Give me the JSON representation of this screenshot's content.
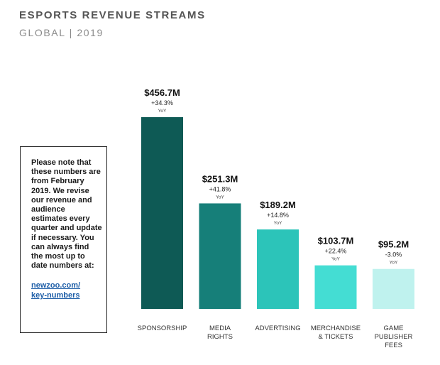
{
  "header": {
    "title": "ESPORTS REVENUE STREAMS",
    "subtitle": "GLOBAL | 2019"
  },
  "note": {
    "text": "Please note that these numbers are from February 2019. We revise our revenue and audience estimates every quarter and update if necessary. You can always find the most up to date numbers at:",
    "link_line1": "newzoo.com/",
    "link_line2": "key-numbers"
  },
  "chart_data": {
    "type": "bar",
    "title": "ESPORTS REVENUE STREAMS",
    "subtitle": "GLOBAL | 2019",
    "categories": [
      "SPONSORSHIP",
      "MEDIA RIGHTS",
      "ADVERTISING",
      "MERCHANDISE & TICKETS",
      "GAME PUBLISHER FEES"
    ],
    "category_label_lines": [
      [
        "SPONSORSHIP"
      ],
      [
        "MEDIA",
        "RIGHTS"
      ],
      [
        "ADVERTISING"
      ],
      [
        "MERCHANDISE",
        "& TICKETS"
      ],
      [
        "GAME",
        "PUBLISHER",
        "FEES"
      ]
    ],
    "values": [
      456.7,
      251.3,
      189.2,
      103.7,
      95.2
    ],
    "value_labels": [
      "$456.7M",
      "$251.3M",
      "$189.2M",
      "$103.7M",
      "$95.2M"
    ],
    "growth_labels": [
      "+34.3%",
      "+41.8%",
      "+14.8%",
      "+22.4%",
      "-3.0%"
    ],
    "growth_unit": "YoY",
    "bar_colors": [
      "#0e5a55",
      "#167f79",
      "#2cc4b9",
      "#44ddd3",
      "#bff2ee"
    ],
    "value_unit": "$M",
    "grid": false,
    "legend": "none"
  }
}
